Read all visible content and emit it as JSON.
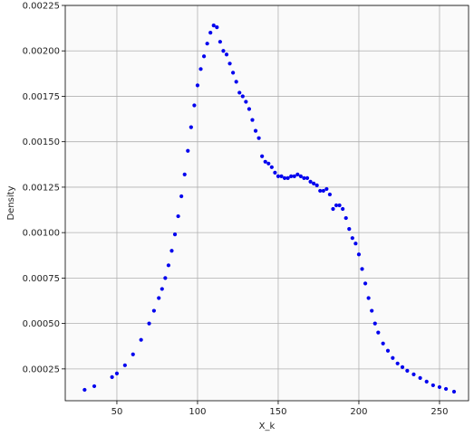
{
  "chart_data": {
    "type": "scatter",
    "title": "",
    "xlabel": "X_k",
    "ylabel": "Density",
    "xlim": [
      18,
      268
    ],
    "ylim": [
      7.5e-05,
      0.00225
    ],
    "x_ticks": [
      50,
      100,
      150,
      200,
      250
    ],
    "x_tick_labels": [
      "50",
      "100",
      "150",
      "200",
      "250"
    ],
    "y_ticks": [
      0.00025,
      0.0005,
      0.00075,
      0.001,
      0.00125,
      0.0015,
      0.00175,
      0.002,
      0.00225
    ],
    "y_tick_labels": [
      "0.00025",
      "0.00050",
      "0.00075",
      "0.00100",
      "0.00125",
      "0.00150",
      "0.00175",
      "0.00200",
      "0.00225"
    ],
    "grid": true,
    "legend": "none",
    "colors": {
      "marker": "#0000ee",
      "grid": "#b0b0b0",
      "plot_bg": "#fafafa"
    },
    "series": [
      {
        "x": [
          30,
          36,
          47,
          50,
          55,
          60,
          65,
          70,
          73,
          76,
          78,
          80,
          82,
          84,
          86,
          88,
          90,
          92,
          94,
          96,
          98,
          100,
          102,
          104,
          106,
          108,
          110,
          112,
          114,
          116,
          118,
          120,
          122,
          124,
          126,
          128,
          130,
          132,
          134,
          136,
          138,
          140,
          142,
          144,
          146,
          148,
          150,
          152,
          154,
          156,
          158,
          160,
          162,
          164,
          166,
          168,
          170,
          172,
          174,
          176,
          178,
          180,
          182,
          184,
          186,
          188,
          190,
          192,
          194,
          196,
          198,
          200,
          202,
          204,
          206,
          208,
          210,
          212,
          215,
          218,
          221,
          224,
          227,
          230,
          234,
          238,
          242,
          246,
          250,
          254,
          259
        ],
        "y": [
          0.000135,
          0.000155,
          0.000205,
          0.000225,
          0.00027,
          0.00033,
          0.00041,
          0.0005,
          0.00057,
          0.00064,
          0.00069,
          0.00075,
          0.00082,
          0.0009,
          0.00099,
          0.00109,
          0.0012,
          0.00132,
          0.00145,
          0.00158,
          0.0017,
          0.00181,
          0.0019,
          0.00197,
          0.00204,
          0.0021,
          0.00214,
          0.00213,
          0.00205,
          0.002,
          0.00198,
          0.00193,
          0.00188,
          0.00183,
          0.00177,
          0.00175,
          0.00172,
          0.00168,
          0.00162,
          0.00156,
          0.00152,
          0.00142,
          0.00139,
          0.00138,
          0.00136,
          0.00133,
          0.00131,
          0.00131,
          0.0013,
          0.0013,
          0.00131,
          0.00131,
          0.00132,
          0.00131,
          0.0013,
          0.0013,
          0.00128,
          0.00127,
          0.00126,
          0.00123,
          0.00123,
          0.00124,
          0.00121,
          0.00113,
          0.00115,
          0.00115,
          0.00113,
          0.00108,
          0.00102,
          0.00097,
          0.00094,
          0.00088,
          0.0008,
          0.00072,
          0.00064,
          0.00057,
          0.0005,
          0.00045,
          0.00039,
          0.00035,
          0.00031,
          0.00028,
          0.00026,
          0.00024,
          0.00022,
          0.0002,
          0.00018,
          0.00016,
          0.00015,
          0.00014,
          0.000125
        ]
      }
    ]
  }
}
